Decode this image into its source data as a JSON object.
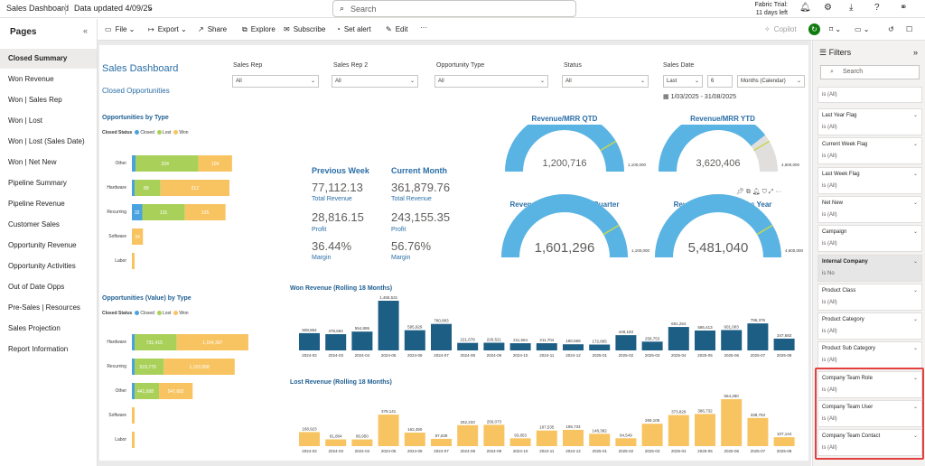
{
  "topbar": {
    "title": "Sales Dashboard",
    "data_updated": "Data updated 4/09/25",
    "search_placeholder": "Search",
    "trial_line1": "Fabric Trial:",
    "trial_line2": "11 days left"
  },
  "pages": {
    "heading": "Pages",
    "items": [
      "Closed Summary",
      "Won Revenue",
      "Won | Sales Rep",
      "Won | Lost",
      "Won | Lost (Sales Date)",
      "Won | Net New",
      "Pipeline Summary",
      "Pipeline Revenue",
      "Customer Sales",
      "Opportunity Revenue",
      "Opportunity Activities",
      "Out of Date Opps",
      "Pre-Sales | Resources",
      "Sales Projection",
      "Report Information"
    ]
  },
  "toolbar": {
    "file": "File",
    "export": "Export",
    "share": "Share",
    "explore": "Explore",
    "subscribe": "Subscribe",
    "set_alert": "Set alert",
    "edit": "Edit",
    "more": "···",
    "copilot": "Copilot"
  },
  "report": {
    "title": "Sales Dashboard",
    "subtitle": "Closed Opportunities",
    "slicers": [
      {
        "label": "Sales Rep",
        "value": "All"
      },
      {
        "label": "Sales Rep 2",
        "value": "All"
      },
      {
        "label": "Opportunity Type",
        "value": "All"
      },
      {
        "label": "Status",
        "value": "All"
      }
    ],
    "sales_date": {
      "label": "Sales Date",
      "mode": "Last",
      "count": "6",
      "unit": "Months (Calendar)",
      "range": "1/03/2025 - 31/08/2025"
    },
    "legend": {
      "title": "Closed Status",
      "closed": "Closed",
      "lost": "Lost",
      "won": "Won"
    },
    "kpis": {
      "previous_week": {
        "title": "Previous Week",
        "revenue": "77,112.13",
        "revenue_label": "Total Revenue",
        "profit": "28,816.15",
        "profit_label": "Profit",
        "margin": "36.44%",
        "margin_label": "Margin"
      },
      "current_month": {
        "title": "Current Month",
        "revenue": "361,879.76",
        "revenue_label": "Total Revenue",
        "profit": "243,155.35",
        "profit_label": "Profit",
        "margin": "56.76%",
        "margin_label": "Margin"
      }
    },
    "gauges": [
      {
        "title": "Revenue/MRR QTD",
        "value": "1,200,716",
        "target": "1,100,000",
        "fill": 1.0
      },
      {
        "title": "Revenue/MRR YTD",
        "value": "3,620,406",
        "target": "4,600,000",
        "fill": 0.79
      },
      {
        "title": "Revenue/MRR Previous Quarter",
        "value": "1,601,296",
        "target": "1,100,000",
        "fill": 1.0
      },
      {
        "title": "Revenue/MRR Previous Year",
        "value": "5,481,040",
        "target": "4,600,000",
        "fill": 1.0
      }
    ]
  },
  "colors": {
    "closed": "#4aa3df",
    "lost": "#a9d15a",
    "won": "#f8c461",
    "dark": "#1d5e85",
    "gauge": "#5ab4e3"
  },
  "chart_data": [
    {
      "type": "bar",
      "title": "Opportunities by Type",
      "orientation": "horizontal",
      "categories": [
        "Other",
        "Hardware",
        "Recurring",
        "Software",
        "Labor"
      ],
      "series": [
        {
          "name": "Closed",
          "values": [
            null,
            null,
            32,
            null,
            null
          ]
        },
        {
          "name": "Lost",
          "values": [
            204,
            88,
            131,
            null,
            null
          ]
        },
        {
          "name": "Won",
          "values": [
            104,
            212,
            125,
            34,
            null
          ]
        }
      ]
    },
    {
      "type": "bar",
      "title": "Opportunities (Value) by Type",
      "orientation": "horizontal",
      "categories": [
        "Hardware",
        "Recurring",
        "Other",
        "Software",
        "Labor"
      ],
      "series": [
        {
          "name": "Closed",
          "values": [
            null,
            null,
            null,
            null,
            null
          ]
        },
        {
          "name": "Lost",
          "values": [
            "731,415",
            "519,779",
            "441,698",
            null,
            null
          ]
        },
        {
          "name": "Won",
          "values": [
            "1,164,397",
            "1,153,958",
            "547,682",
            null,
            null
          ]
        }
      ]
    },
    {
      "type": "bar",
      "title": "Won Revenue (Rolling 18 Months)",
      "categories": [
        "2024-02",
        "2024-03",
        "2024-04",
        "2024-05",
        "2024-06",
        "2024-07",
        "2024-08",
        "2024-09",
        "2024-10",
        "2024-11",
        "2024-12",
        "2025-01",
        "2025-02",
        "2025-03",
        "2025-04",
        "2025-05",
        "2025-06",
        "2025-07",
        "2025-08"
      ],
      "values": [
        508864,
        478694,
        554895,
        1465531,
        595929,
        780883,
        221678,
        226521,
        211564,
        211704,
        180569,
        172895,
        449183,
        258753,
        691254,
        586413,
        601003,
        796376,
        347683
      ],
      "labels": [
        "508,864",
        "478,694",
        "554,895",
        "1,465,531",
        "595,929",
        "780,883",
        "221,678",
        "226,521",
        "211,564",
        "211,704",
        "180,569",
        "172,895",
        "449,183",
        "258,753",
        "691,254",
        "586,413",
        "601,003",
        "796,376",
        "347,683"
      ]
    },
    {
      "type": "bar",
      "title": "Lost Revenue (Rolling 18 Months)",
      "categories": [
        "2024-02",
        "2024-03",
        "2024-04",
        "2024-05",
        "2024-06",
        "2024-07",
        "2024-08",
        "2024-09",
        "2024-10",
        "2024-11",
        "2024-12",
        "2025-01",
        "2025-02",
        "2025-03",
        "2025-04",
        "2025-05",
        "2025-06",
        "2025-07",
        "2025-08"
      ],
      "values": [
        168923,
        81804,
        80950,
        379141,
        162450,
        87639,
        252233,
        256073,
        93853,
        187535,
        195734,
        148382,
        94549,
        269105,
        373829,
        386732,
        564280,
        338753,
        107144
      ],
      "labels": [
        "168,923",
        "81,804",
        "80,950",
        "379,141",
        "162,450",
        "87,639",
        "252,233",
        "256,073",
        "93,853",
        "187,535",
        "195,734",
        "148,382",
        "94,549",
        "269,105",
        "373,829",
        "386,732",
        "564,280",
        "338,753",
        "107,144"
      ]
    }
  ],
  "filters": {
    "heading": "Filters",
    "search_placeholder": "Search",
    "top_value": "is (All)",
    "cards": [
      {
        "name": "Last Year Flag",
        "value": "is (All)"
      },
      {
        "name": "Current Week Flag",
        "value": "is (All)"
      },
      {
        "name": "Last Week Flag",
        "value": "is (All)"
      },
      {
        "name": "Net New",
        "value": "is (All)"
      },
      {
        "name": "Campaign",
        "value": "is (All)"
      },
      {
        "name": "Internal Company",
        "value": "is No"
      },
      {
        "name": "Product Class",
        "value": "is (All)"
      },
      {
        "name": "Product Category",
        "value": "is (All)"
      },
      {
        "name": "Product Sub Category",
        "value": "is (All)"
      },
      {
        "name": "Company Team Role",
        "value": "is (All)"
      },
      {
        "name": "Company Team User",
        "value": "is (All)"
      },
      {
        "name": "Company Team Contact",
        "value": "is (All)"
      }
    ]
  }
}
